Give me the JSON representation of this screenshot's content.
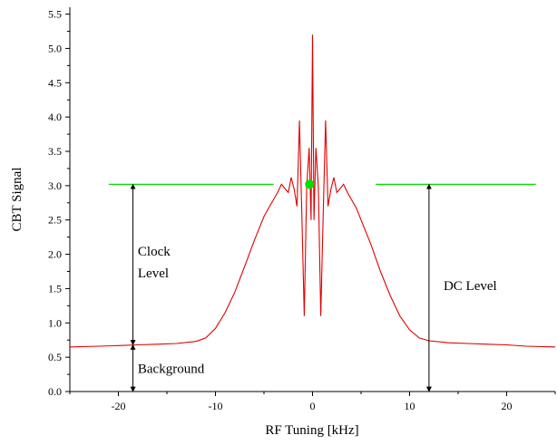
{
  "chart_data": {
    "type": "line",
    "xlabel": "RF Tuning [kHz]",
    "ylabel": "CBT Signal",
    "xlim": [
      -25,
      25
    ],
    "ylim": [
      0.0,
      5.6
    ],
    "grid": false,
    "xticks": [
      -20,
      -10,
      0,
      10,
      20
    ],
    "yticks": [
      0.0,
      0.5,
      1.0,
      1.5,
      2.0,
      2.5,
      3.0,
      3.5,
      4.0,
      4.5,
      5.0,
      5.5
    ],
    "xtick_labels": [
      "-20",
      "-10",
      "0",
      "10",
      "20"
    ],
    "ytick_labels": [
      "0.0",
      "0.5",
      "1.0",
      "1.5",
      "2.0",
      "2.5",
      "3.0",
      "3.5",
      "4.0",
      "4.5",
      "5.0",
      "5.5"
    ],
    "series": [
      {
        "color": "#e00000",
        "x": [
          -25,
          -22,
          -20,
          -18,
          -16,
          -14,
          -12,
          -11,
          -10,
          -9,
          -8,
          -7,
          -6,
          -5,
          -4.5,
          -4,
          -3.6,
          -3.2,
          -2.8,
          -2.5,
          -2.2,
          -1.9,
          -1.6,
          -1.35,
          -1.1,
          -0.85,
          -0.6,
          -0.35,
          -0.15,
          0,
          0.15,
          0.35,
          0.6,
          0.85,
          1.1,
          1.35,
          1.6,
          1.9,
          2.2,
          2.5,
          2.8,
          3.2,
          3.6,
          4,
          4.5,
          5,
          6,
          7,
          8,
          9,
          10,
          11,
          12,
          14,
          16,
          18,
          20,
          22,
          25
        ],
        "y": [
          0.65,
          0.66,
          0.67,
          0.68,
          0.69,
          0.7,
          0.73,
          0.78,
          0.92,
          1.15,
          1.45,
          1.82,
          2.2,
          2.55,
          2.68,
          2.8,
          2.9,
          3.02,
          2.95,
          2.9,
          3.12,
          2.95,
          2.7,
          3.95,
          2.6,
          1.1,
          3.0,
          3.55,
          2.5,
          5.2,
          2.5,
          3.55,
          3.0,
          1.1,
          2.6,
          3.95,
          2.7,
          2.95,
          3.12,
          2.9,
          2.95,
          3.02,
          2.9,
          2.8,
          2.68,
          2.5,
          2.15,
          1.75,
          1.4,
          1.1,
          0.9,
          0.78,
          0.74,
          0.71,
          0.7,
          0.69,
          0.68,
          0.66,
          0.65
        ]
      }
    ],
    "levels": {
      "color": "#00dd00",
      "clock_level": 3.02,
      "left_segment_x": [
        -21,
        -4
      ],
      "right_segment_x": [
        6.5,
        23
      ],
      "marker": {
        "x": -0.3,
        "y": 3.02
      }
    },
    "annotations": {
      "clock_label_1": "Clock",
      "clock_label_2": "Level",
      "background_label": "Background",
      "dc_label": "DC Level",
      "clock_arrow": {
        "x": -18.5,
        "y_from": 0.68,
        "y_to": 3.02
      },
      "background_arrow": {
        "x": -18.5,
        "y_from": 0.0,
        "y_to": 0.68
      },
      "dc_arrow": {
        "x": 12,
        "y_from": 0.0,
        "y_to": 3.02
      },
      "clock_label_pos": {
        "x": -18,
        "y": 1.98
      },
      "background_label_pos": {
        "x": -18,
        "y": 0.27
      },
      "dc_label_pos": {
        "x": 13.5,
        "y": 1.48
      }
    }
  }
}
